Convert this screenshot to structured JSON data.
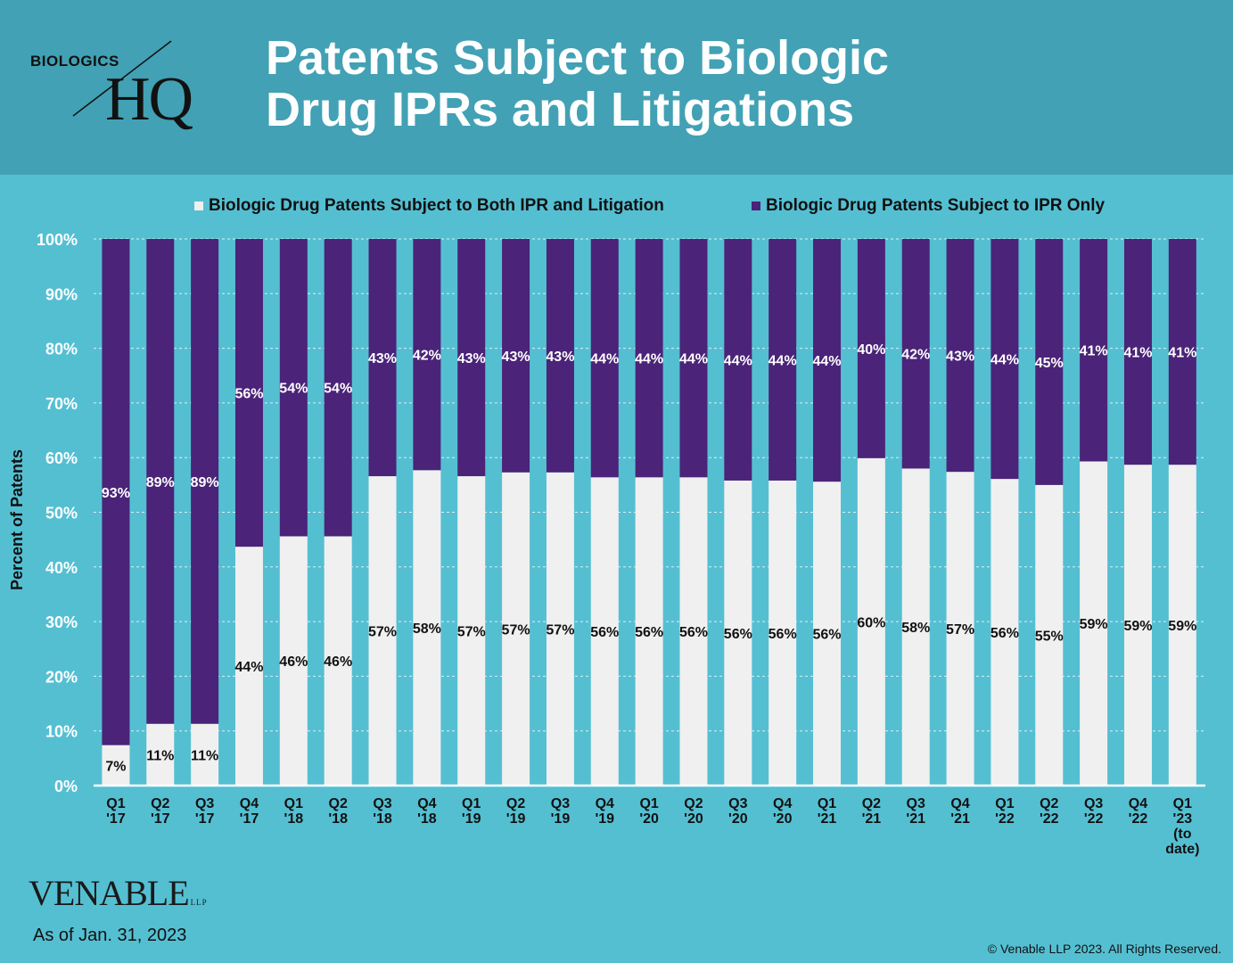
{
  "header": {
    "logo_small": "BIOLOGICS",
    "logo_big": "HQ",
    "title_line1": "Patents Subject to Biologic",
    "title_line2": "Drug IPRs and Litigations"
  },
  "footer": {
    "firm_name": "VENABLE",
    "firm_suffix": "LLP",
    "as_of": "As of Jan. 31, 2023",
    "copyright": "© Venable LLP 2023. All Rights Reserved."
  },
  "colors": {
    "both": "#f0f0f0",
    "ipr_only": "#4b2378",
    "background": "#55bfd2",
    "header": "#42a1b4"
  },
  "chart_data": {
    "type": "bar",
    "stacked": true,
    "ylabel": "Percent of Patents",
    "ylim": [
      0,
      100
    ],
    "yticks": [
      "0%",
      "10%",
      "20%",
      "30%",
      "40%",
      "50%",
      "60%",
      "70%",
      "80%",
      "90%",
      "100%"
    ],
    "grid": true,
    "legend_position": "top",
    "categories": [
      [
        "Q1",
        "'17"
      ],
      [
        "Q2",
        "'17"
      ],
      [
        "Q3",
        "'17"
      ],
      [
        "Q4",
        "'17"
      ],
      [
        "Q1",
        "'18"
      ],
      [
        "Q2",
        "'18"
      ],
      [
        "Q3",
        "'18"
      ],
      [
        "Q4",
        "'18"
      ],
      [
        "Q1",
        "'19"
      ],
      [
        "Q2",
        "'19"
      ],
      [
        "Q3",
        "'19"
      ],
      [
        "Q4",
        "'19"
      ],
      [
        "Q1",
        "'20"
      ],
      [
        "Q2",
        "'20"
      ],
      [
        "Q3",
        "'20"
      ],
      [
        "Q4",
        "'20"
      ],
      [
        "Q1",
        "'21"
      ],
      [
        "Q2",
        "'21"
      ],
      [
        "Q3",
        "'21"
      ],
      [
        "Q4",
        "'21"
      ],
      [
        "Q1",
        "'22"
      ],
      [
        "Q2",
        "'22"
      ],
      [
        "Q3",
        "'22"
      ],
      [
        "Q4",
        "'22"
      ],
      [
        "Q1",
        "'23",
        "(to",
        "date)"
      ]
    ],
    "series": [
      {
        "name": "Biologic Drug Patents Subject to Both IPR and Litigation",
        "values": [
          7.4,
          11.3,
          11.3,
          43.7,
          45.6,
          45.6,
          56.6,
          57.7,
          56.6,
          57.3,
          57.3,
          56.4,
          56.4,
          56.4,
          55.8,
          55.8,
          55.6,
          59.9,
          58.0,
          57.4,
          56.1,
          55.0,
          59.3,
          58.7,
          58.7
        ],
        "labels": [
          "7%",
          "11%",
          "11%",
          "44%",
          "46%",
          "46%",
          "57%",
          "58%",
          "57%",
          "57%",
          "57%",
          "56%",
          "56%",
          "56%",
          "56%",
          "56%",
          "56%",
          "60%",
          "58%",
          "57%",
          "56%",
          "55%",
          "59%",
          "59%",
          "59%"
        ]
      },
      {
        "name": "Biologic Drug Patents Subject to IPR Only",
        "values": [
          92.6,
          88.7,
          88.7,
          56.3,
          54.4,
          54.4,
          43.4,
          42.3,
          43.4,
          42.7,
          42.7,
          43.6,
          43.6,
          43.6,
          44.2,
          44.2,
          44.4,
          40.1,
          42.0,
          42.6,
          43.9,
          45.0,
          40.7,
          41.3,
          41.3
        ],
        "labels": [
          "93%",
          "89%",
          "89%",
          "56%",
          "54%",
          "54%",
          "43%",
          "42%",
          "43%",
          "43%",
          "43%",
          "44%",
          "44%",
          "44%",
          "44%",
          "44%",
          "44%",
          "40%",
          "42%",
          "43%",
          "44%",
          "45%",
          "41%",
          "41%",
          "41%"
        ]
      }
    ]
  }
}
